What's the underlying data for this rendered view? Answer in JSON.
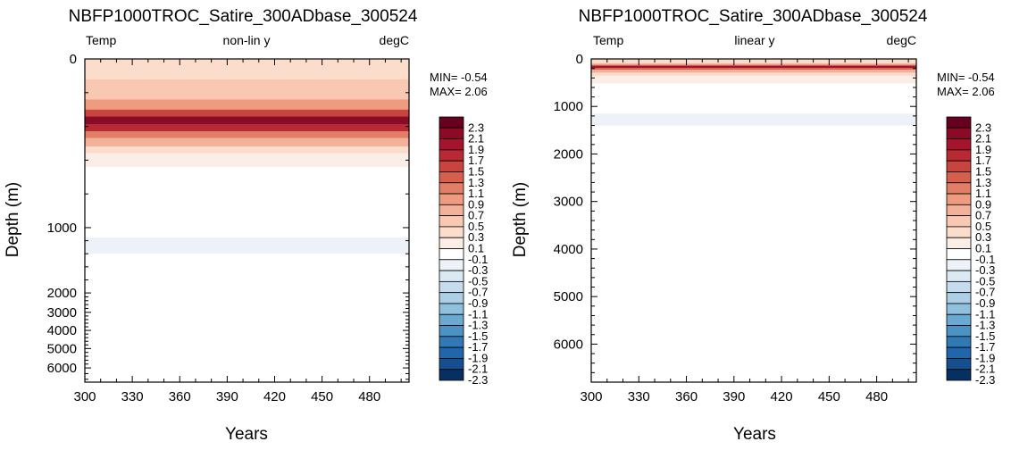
{
  "chart_data": [
    {
      "type": "heatmap",
      "title": "NBFP1000TROC_Satire_300ADbase_300524",
      "left_label": "Temp",
      "center_label": "non-lin y",
      "right_label": "degC",
      "xlabel": "Years",
      "ylabel": "Depth (m)",
      "xlim": [
        300,
        505
      ],
      "xticks": [
        300,
        330,
        360,
        390,
        420,
        450,
        480
      ],
      "y_scale": "non-linear",
      "ylim": [
        0,
        6500
      ],
      "yticks": [
        0,
        1000,
        2000,
        3000,
        4000,
        5000,
        6000
      ],
      "stats": {
        "min": "MIN= -0.54",
        "max": "MAX=  2.06"
      },
      "field_bands": [
        {
          "top": 0,
          "bottom": 120,
          "value": 0.3
        },
        {
          "top": 120,
          "bottom": 240,
          "value": 0.5
        },
        {
          "top": 240,
          "bottom": 300,
          "value": 0.9
        },
        {
          "top": 300,
          "bottom": 340,
          "value": 1.5
        },
        {
          "top": 340,
          "bottom": 390,
          "value": 2.1
        },
        {
          "top": 390,
          "bottom": 430,
          "value": 1.7
        },
        {
          "top": 430,
          "bottom": 470,
          "value": 1.1
        },
        {
          "top": 470,
          "bottom": 520,
          "value": 0.7
        },
        {
          "top": 520,
          "bottom": 560,
          "value": 0.3
        },
        {
          "top": 560,
          "bottom": 640,
          "value": 0.1
        },
        {
          "top": 640,
          "bottom": 1150,
          "value": -0.1
        },
        {
          "top": 1150,
          "bottom": 1400,
          "value": -0.3
        },
        {
          "top": 1400,
          "bottom": 5500,
          "value": -0.1
        }
      ]
    },
    {
      "type": "heatmap",
      "title": "NBFP1000TROC_Satire_300ADbase_300524",
      "left_label": "Temp",
      "center_label": "linear y",
      "right_label": "degC",
      "xlabel": "Years",
      "ylabel": "Depth (m)",
      "xlim": [
        300,
        505
      ],
      "xticks": [
        300,
        330,
        360,
        390,
        420,
        450,
        480
      ],
      "y_scale": "linear",
      "ylim": [
        0,
        6800
      ],
      "yticks": [
        0,
        1000,
        2000,
        3000,
        4000,
        5000,
        6000
      ],
      "stats": {
        "min": "MIN= -0.54",
        "max": "MAX=  2.06"
      },
      "field_bands": [
        {
          "top": 0,
          "bottom": 100,
          "value": 0.3
        },
        {
          "top": 100,
          "bottom": 140,
          "value": 0.9
        },
        {
          "top": 140,
          "bottom": 190,
          "value": 1.9
        },
        {
          "top": 190,
          "bottom": 230,
          "value": 1.3
        },
        {
          "top": 230,
          "bottom": 290,
          "value": 0.7
        },
        {
          "top": 290,
          "bottom": 360,
          "value": 0.3
        },
        {
          "top": 360,
          "bottom": 520,
          "value": 0.1
        },
        {
          "top": 520,
          "bottom": 1150,
          "value": -0.1
        },
        {
          "top": 1150,
          "bottom": 1400,
          "value": -0.3
        },
        {
          "top": 1400,
          "bottom": 5500,
          "value": -0.1
        }
      ]
    }
  ],
  "colorbar": {
    "labels": [
      "2.3",
      "2.1",
      "1.9",
      "1.7",
      "1.5",
      "1.3",
      "1.1",
      "0.9",
      "0.7",
      "0.5",
      "0.3",
      "0.1",
      "-0.1",
      "-0.3",
      "-0.5",
      "-0.7",
      "-0.9",
      "-1.1",
      "-1.3",
      "-1.5",
      "-1.7",
      "-1.9",
      "-2.1",
      "-2.3"
    ],
    "colors": [
      "#67001f",
      "#8b0a26",
      "#a5142c",
      "#b92932",
      "#c9443e",
      "#d6604d",
      "#e27e66",
      "#ee9b7f",
      "#f4b199",
      "#f9c8b2",
      "#fcdccb",
      "#fbeee6",
      "#ffffff",
      "#ecf2f8",
      "#dbe9f3",
      "#c6dbed",
      "#accfe5",
      "#8fc0dd",
      "#6aa9d1",
      "#4b93c4",
      "#3179b6",
      "#2166ac",
      "#14508f",
      "#053061"
    ]
  }
}
